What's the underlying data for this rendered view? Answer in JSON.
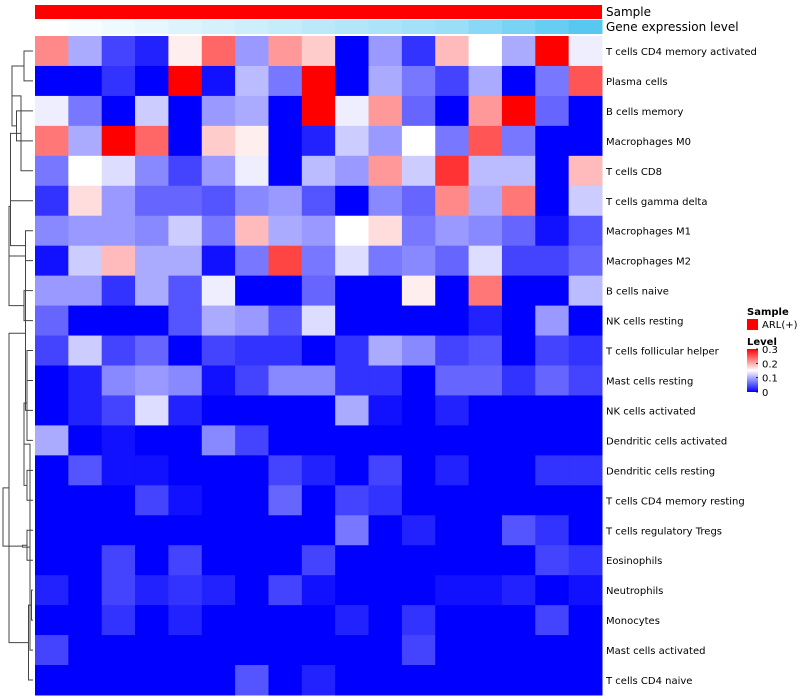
{
  "chart_data": {
    "type": "heatmap",
    "title": "",
    "annotation_labels": {
      "sample": "Sample",
      "expression": "Gene expression level"
    },
    "rows": [
      "T cells CD4 memory activated",
      "Plasma cells",
      "B cells memory",
      "Macrophages M0",
      "T cells CD8",
      "T cells gamma delta",
      "Macrophages M1",
      "Macrophages M2",
      "B cells naive",
      "NK cells resting",
      "T cells follicular helper",
      "Mast cells resting",
      "NK cells activated",
      "Dendritic cells activated",
      "Dendritic cells resting",
      "T cells CD4 memory resting",
      "T cells regulatory  Tregs",
      "Eosinophils",
      "Neutrophils",
      "Monocytes",
      "Mast cells activated",
      "T cells CD4 naive"
    ],
    "expression_annotation": [
      0.0,
      0.05,
      0.1,
      0.15,
      0.2,
      0.25,
      0.3,
      0.35,
      0.4,
      0.45,
      0.5,
      0.55,
      0.6,
      0.7,
      0.8,
      0.9,
      1.0
    ],
    "values": [
      [
        0.22,
        0.1,
        0.04,
        0.02,
        0.16,
        0.24,
        0.09,
        0.21,
        0.18,
        0.0,
        0.09,
        0.03,
        0.19,
        0.15,
        0.1,
        0.3,
        0.14
      ],
      [
        0.0,
        0.0,
        0.03,
        0.0,
        0.3,
        0.01,
        0.11,
        0.07,
        0.3,
        0.0,
        0.1,
        0.07,
        0.04,
        0.1,
        0.0,
        0.07,
        0.25
      ],
      [
        0.14,
        0.07,
        0.0,
        0.12,
        0.0,
        0.09,
        0.1,
        0.0,
        0.3,
        0.14,
        0.21,
        0.06,
        0.0,
        0.21,
        0.3,
        0.06,
        0.0
      ],
      [
        0.23,
        0.1,
        0.3,
        0.24,
        0.0,
        0.18,
        0.16,
        0.0,
        0.02,
        0.12,
        0.09,
        0.15,
        0.07,
        0.25,
        0.07,
        0.0,
        0.0
      ],
      [
        0.07,
        0.15,
        0.13,
        0.08,
        0.04,
        0.09,
        0.14,
        0.0,
        0.11,
        0.09,
        0.21,
        0.12,
        0.27,
        0.11,
        0.11,
        0.0,
        0.19
      ],
      [
        0.03,
        0.17,
        0.09,
        0.06,
        0.06,
        0.05,
        0.08,
        0.09,
        0.05,
        0.0,
        0.08,
        0.06,
        0.22,
        0.1,
        0.23,
        0.0,
        0.12
      ],
      [
        0.08,
        0.09,
        0.09,
        0.08,
        0.12,
        0.07,
        0.19,
        0.1,
        0.09,
        0.15,
        0.17,
        0.07,
        0.09,
        0.08,
        0.06,
        0.01,
        0.05
      ],
      [
        0.01,
        0.12,
        0.19,
        0.1,
        0.1,
        0.01,
        0.07,
        0.26,
        0.07,
        0.13,
        0.07,
        0.08,
        0.06,
        0.13,
        0.04,
        0.04,
        0.06
      ],
      [
        0.09,
        0.09,
        0.03,
        0.1,
        0.05,
        0.14,
        0.0,
        0.0,
        0.06,
        0.0,
        0.0,
        0.16,
        0.0,
        0.23,
        0.0,
        0.0,
        0.11
      ],
      [
        0.06,
        0.0,
        0.0,
        0.0,
        0.05,
        0.1,
        0.09,
        0.05,
        0.13,
        0.0,
        0.0,
        0.0,
        0.0,
        0.02,
        0.0,
        0.09,
        0.0
      ],
      [
        0.04,
        0.12,
        0.04,
        0.06,
        0.0,
        0.04,
        0.03,
        0.03,
        0.0,
        0.03,
        0.1,
        0.08,
        0.04,
        0.05,
        0.0,
        0.04,
        0.03
      ],
      [
        0.0,
        0.02,
        0.08,
        0.09,
        0.08,
        0.01,
        0.04,
        0.08,
        0.08,
        0.03,
        0.03,
        0.0,
        0.06,
        0.06,
        0.03,
        0.06,
        0.04
      ],
      [
        0.0,
        0.02,
        0.04,
        0.13,
        0.02,
        0.0,
        0.0,
        0.0,
        0.0,
        0.1,
        0.01,
        0.0,
        0.02,
        0.0,
        0.0,
        0.0,
        0.0
      ],
      [
        0.1,
        0.0,
        0.01,
        0.0,
        0.0,
        0.08,
        0.04,
        0.0,
        0.0,
        0.0,
        0.0,
        0.0,
        0.0,
        0.0,
        0.0,
        0.0,
        0.0
      ],
      [
        0.0,
        0.05,
        0.01,
        0.01,
        0.0,
        0.0,
        0.0,
        0.04,
        0.02,
        0.0,
        0.04,
        0.0,
        0.02,
        0.0,
        0.0,
        0.03,
        0.03
      ],
      [
        0.0,
        0.0,
        0.0,
        0.04,
        0.01,
        0.0,
        0.0,
        0.06,
        0.0,
        0.04,
        0.03,
        0.0,
        0.0,
        0.0,
        0.0,
        0.0,
        0.0
      ],
      [
        0.0,
        0.0,
        0.0,
        0.0,
        0.0,
        0.0,
        0.0,
        0.0,
        0.0,
        0.07,
        0.0,
        0.02,
        0.0,
        0.0,
        0.05,
        0.03,
        0.0
      ],
      [
        0.0,
        0.0,
        0.04,
        0.0,
        0.04,
        0.0,
        0.0,
        0.0,
        0.04,
        0.0,
        0.0,
        0.0,
        0.0,
        0.0,
        0.0,
        0.04,
        0.03
      ],
      [
        0.02,
        0.0,
        0.04,
        0.02,
        0.03,
        0.02,
        0.0,
        0.04,
        0.01,
        0.0,
        0.0,
        0.0,
        0.01,
        0.01,
        0.02,
        0.0,
        0.01
      ],
      [
        0.0,
        0.0,
        0.03,
        0.0,
        0.02,
        0.0,
        0.0,
        0.0,
        0.0,
        0.02,
        0.0,
        0.03,
        0.0,
        0.0,
        0.0,
        0.04,
        0.0
      ],
      [
        0.04,
        0.0,
        0.0,
        0.0,
        0.0,
        0.0,
        0.0,
        0.0,
        0.0,
        0.0,
        0.0,
        0.04,
        0.0,
        0.0,
        0.0,
        0.0,
        0.0
      ],
      [
        0.0,
        0.0,
        0.0,
        0.0,
        0.0,
        0.0,
        0.05,
        0.0,
        0.02,
        0.0,
        0.0,
        0.0,
        0.0,
        0.0,
        0.0,
        0.0,
        0.0
      ]
    ],
    "color_scale": {
      "low": "#0000ff",
      "mid": "#ffffff",
      "high": "#ff0000",
      "min": 0,
      "mid_value": 0.15,
      "max": 0.3
    },
    "annotation_colors": {
      "sample": "#ff0000",
      "expression_low": "#ffffff",
      "expression_high": "#56c8f2"
    },
    "legend": {
      "sample_title": "Sample",
      "sample_item": "ARL(+)",
      "level_title": "Level",
      "level_ticks": [
        "0.3",
        "0.2",
        "0.1",
        "0"
      ],
      "level_tick_values": [
        0.3,
        0.2,
        0.1,
        0
      ]
    },
    "dendrogram": {
      "merges": [
        [
          0,
          1
        ],
        [
          2,
          3
        ],
        [
          22,
          23
        ],
        [
          24,
          4
        ],
        [
          25,
          5
        ],
        [
          6,
          7
        ],
        [
          26,
          27
        ],
        [
          8,
          9
        ],
        [
          28,
          29
        ],
        [
          10,
          11
        ],
        [
          30,
          12
        ],
        [
          13,
          31
        ],
        [
          14,
          15
        ],
        [
          16,
          17
        ],
        [
          33,
          34
        ],
        [
          18,
          19
        ],
        [
          36,
          20
        ],
        [
          37,
          21
        ],
        [
          35,
          38
        ],
        [
          32,
          39
        ],
        [
          40,
          41
        ]
      ],
      "heights": [
        0.3,
        0.55,
        0.7,
        0.4,
        0.75,
        0.25,
        0.75,
        0.3,
        0.8,
        0.2,
        0.25,
        0.2,
        0.2,
        0.2,
        0.3,
        0.05,
        0.1,
        0.15,
        0.35,
        0.8,
        1.0
      ]
    }
  }
}
